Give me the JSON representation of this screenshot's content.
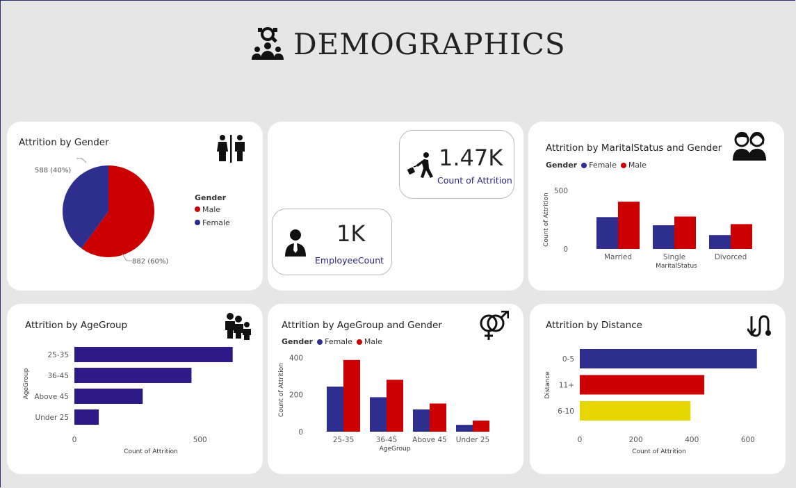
{
  "header": {
    "title": "DEMOGRAPHICS",
    "icon": "demographics-icon"
  },
  "colors": {
    "female": "#2e2e8f",
    "male": "#cc0000",
    "agegroup": "#2e1a87",
    "yellow": "#e6d800"
  },
  "gender_card": {
    "title": "Attrition by Gender",
    "icon": "restroom-icon",
    "legend_title": "Gender",
    "legend": [
      "Male",
      "Female"
    ],
    "label_female": "588 (40%)",
    "label_male": "882 (60%)",
    "chart_data": {
      "type": "pie",
      "title": "Attrition by Gender",
      "slices": [
        {
          "name": "Male",
          "value": 882
        },
        {
          "name": "Female",
          "value": 588
        }
      ]
    }
  },
  "kpis": {
    "attrition": {
      "value": "1.47K",
      "label": "Count of Attrition",
      "icon": "person-leaving-icon"
    },
    "employee": {
      "value": "1K",
      "label": "EmployeeCount",
      "icon": "employee-icon"
    }
  },
  "marital_card": {
    "title": "Attrition by MaritalStatus and Gender",
    "icon": "couple-icon",
    "legend_title": "Gender",
    "legend": [
      "Female",
      "Male"
    ],
    "ylabel": "Count of Attrition",
    "xlabel": "MaritalStatus",
    "yticks": [
      "500",
      "0"
    ],
    "chart_data": {
      "type": "bar",
      "categories": [
        "Married",
        "Single",
        "Divorced"
      ],
      "series": [
        {
          "name": "Female",
          "values": [
            272,
            202,
            118
          ]
        },
        {
          "name": "Male",
          "values": [
            404,
            277,
            212
          ]
        }
      ],
      "ylim": [
        0,
        500
      ]
    }
  },
  "age_card": {
    "title": "Attrition by AgeGroup",
    "icon": "family-icon",
    "ylabel": "AgeGroup",
    "xlabel": "Count of Attrition",
    "xticks": [
      "0",
      "500"
    ],
    "chart_data": {
      "type": "bar",
      "orientation": "horizontal",
      "categories": [
        "25-35",
        "36-45",
        "Above 45",
        "Under 25"
      ],
      "values": [
        630,
        466,
        272,
        97
      ],
      "xlim": [
        0,
        700
      ]
    }
  },
  "age_gender_card": {
    "title": "Attrition by AgeGroup and Gender",
    "icon": "gender-symbol-icon",
    "legend_title": "Gender",
    "legend": [
      "Female",
      "Male"
    ],
    "ylabel": "Count of Attrition",
    "xlabel": "AgeGroup",
    "yticks": [
      "400",
      "200",
      "0"
    ],
    "chart_data": {
      "type": "bar",
      "categories": [
        "25-35",
        "36-45",
        "Above 45",
        "Under 25"
      ],
      "series": [
        {
          "name": "Female",
          "values": [
            243,
            186,
            120,
            37
          ]
        },
        {
          "name": "Male",
          "values": [
            387,
            280,
            152,
            60
          ]
        }
      ],
      "ylim": [
        0,
        450
      ]
    }
  },
  "distance_card": {
    "title": "Attrition by Distance",
    "icon": "route-icon",
    "ylabel": "Distance",
    "xlabel": "Count of Attrition",
    "xticks": [
      "0",
      "200",
      "400",
      "600"
    ],
    "chart_data": {
      "type": "bar",
      "orientation": "horizontal",
      "categories": [
        "0-5",
        "11+",
        "6-10"
      ],
      "values": [
        632,
        444,
        395
      ],
      "colors": [
        "#2e2e8f",
        "#cc0000",
        "#e6d800"
      ],
      "xlim": [
        0,
        650
      ]
    }
  }
}
